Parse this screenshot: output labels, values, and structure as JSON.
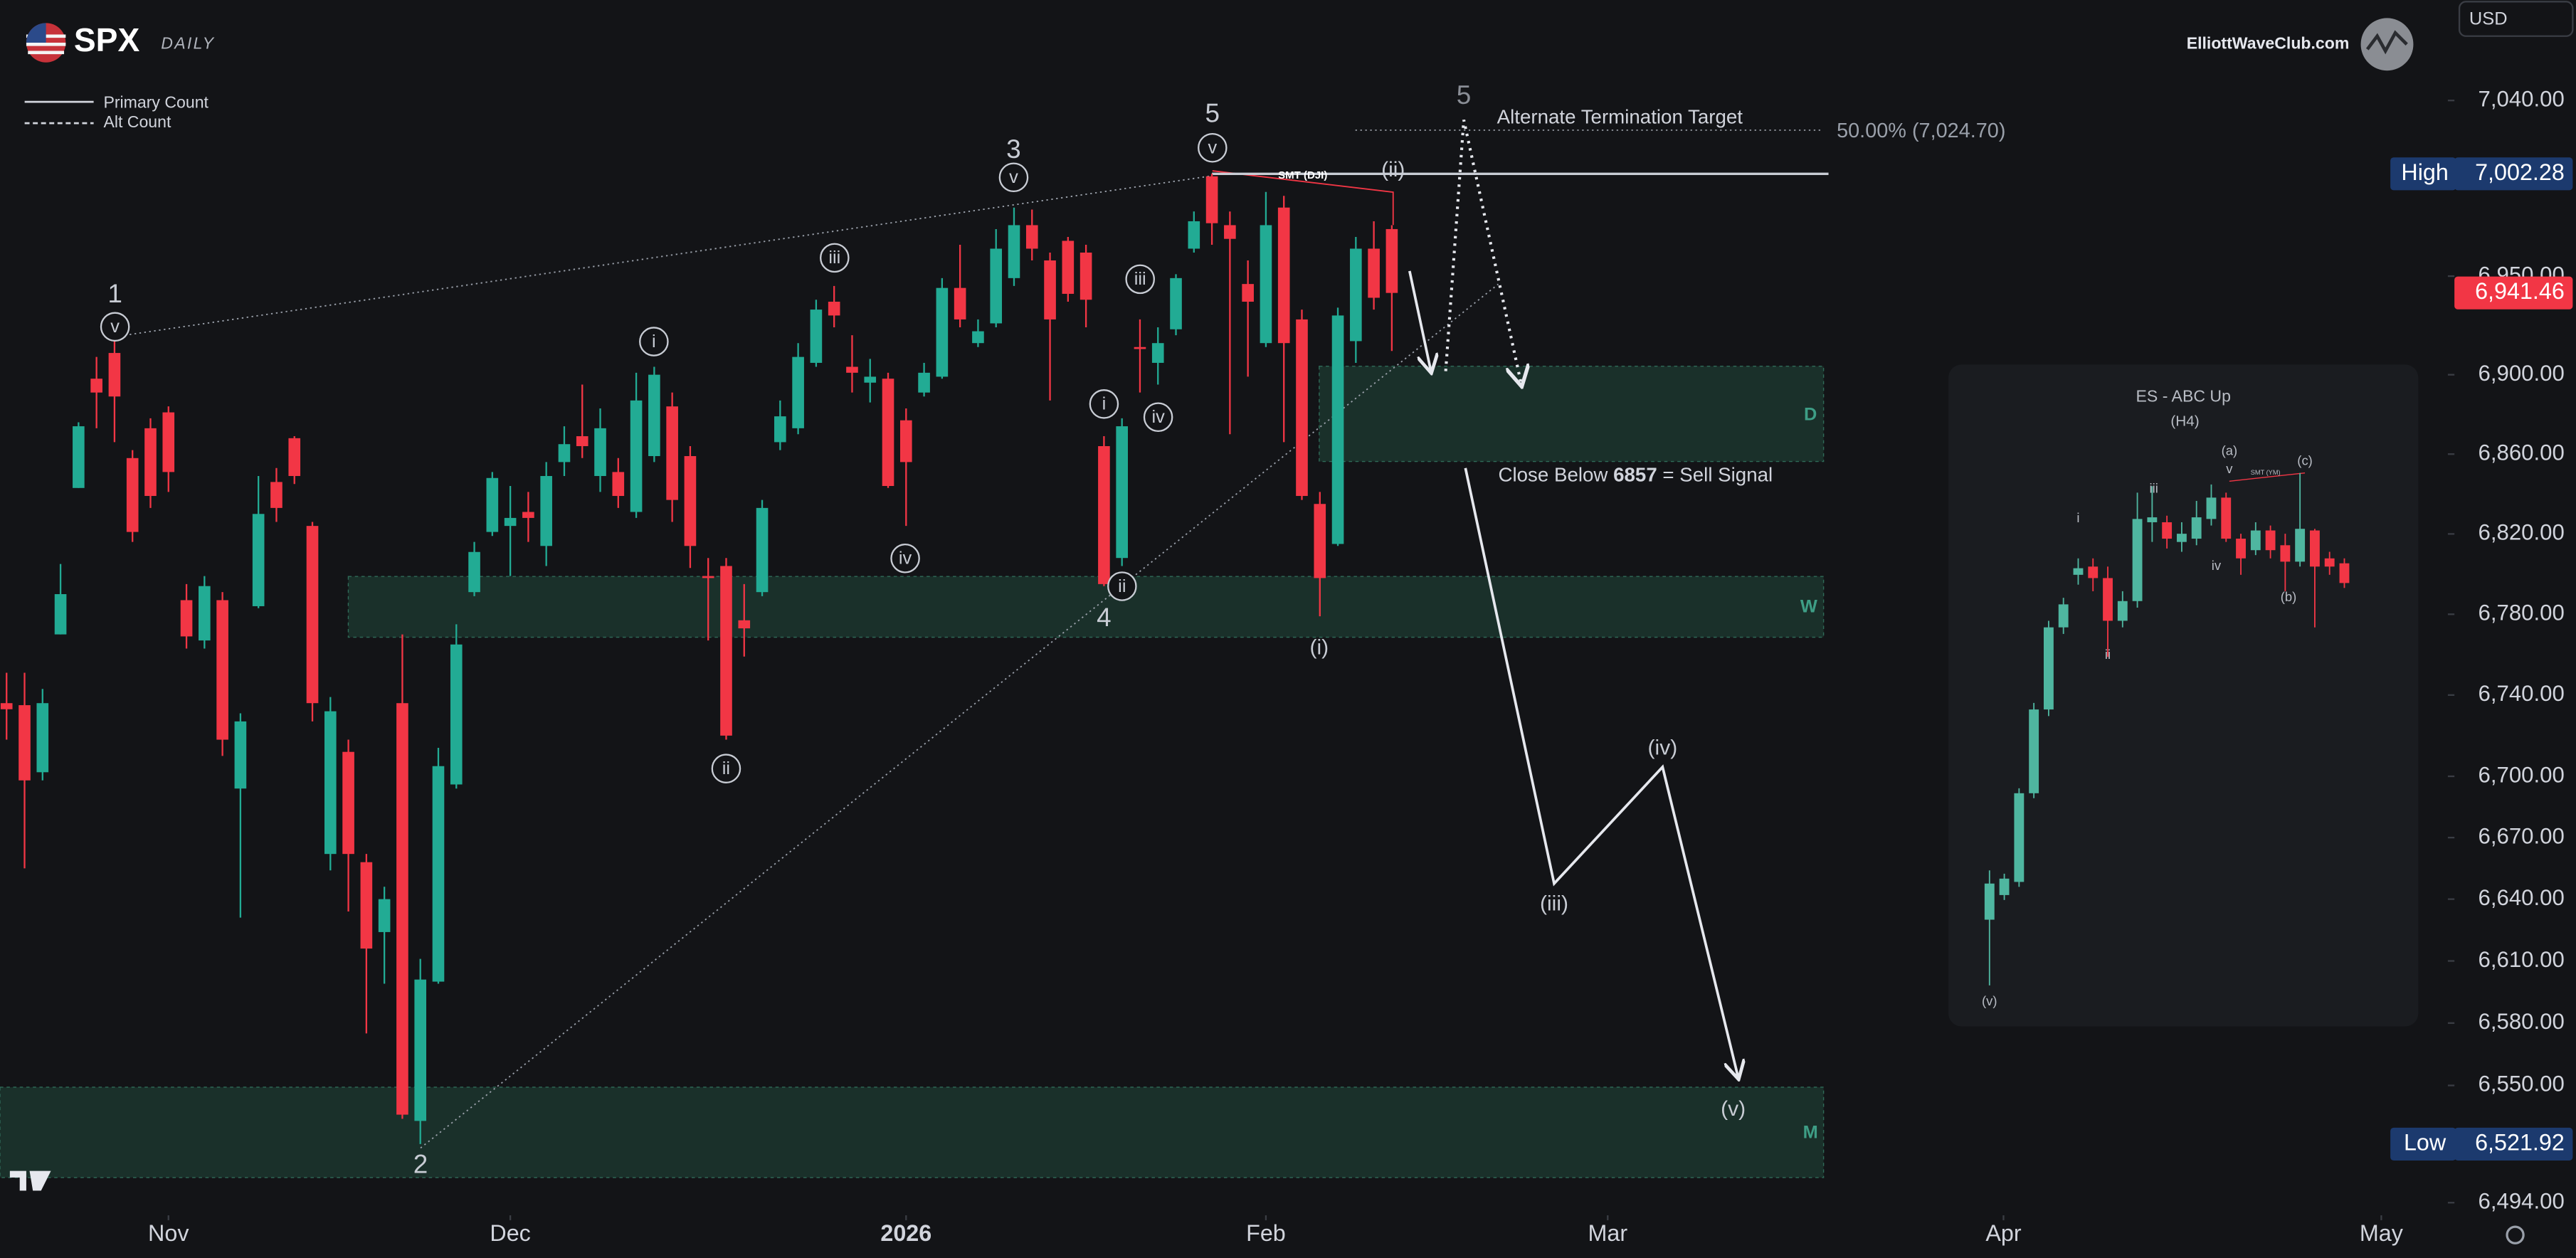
{
  "header": {
    "symbol": "SPX",
    "timeframe": "DAILY",
    "site": "ElliottWaveClub.com",
    "currency": "USD"
  },
  "legend": [
    "Primary Count",
    "Alt Count"
  ],
  "chart_data": {
    "type": "candlestick",
    "up_color": "#22ab94",
    "down_color": "#f23645",
    "log_scale": true,
    "grid": false,
    "open": [
      6736,
      6735,
      6702,
      6770,
      6843,
      6898,
      6911,
      6858,
      6873,
      6881,
      6787,
      6767,
      6787,
      6694,
      6784,
      6846,
      6868,
      6824,
      6662,
      6712,
      6658,
      6624,
      6736,
      6533,
      6600,
      6696,
      6791,
      6821,
      6824,
      6831,
      6814,
      6856,
      6869,
      6849,
      6851,
      6831,
      6859,
      6884,
      6859,
      6799,
      6804,
      6777,
      6791,
      6866,
      6873,
      6906,
      6937,
      6904,
      6896,
      6898,
      6877,
      6891,
      6899,
      6944,
      6916,
      6926,
      6949,
      6976,
      6958,
      6968,
      6962,
      6864,
      6808,
      6914,
      6906,
      6923,
      6964,
      7001,
      6976,
      6946,
      6916,
      6985,
      6928,
      6835,
      6815,
      6917,
      6964,
      6974
    ],
    "high": [
      6751,
      6751,
      6743,
      6805,
      6876,
      6909,
      6920,
      6862,
      6878,
      6884,
      6795,
      6799,
      6791,
      6731,
      6849,
      6853,
      6869,
      6826,
      6739,
      6718,
      6662,
      6646,
      6770,
      6611,
      6714,
      6775,
      6816,
      6851,
      6844,
      6841,
      6856,
      6874,
      6895,
      6883,
      6858,
      6901,
      6904,
      6891,
      6864,
      6808,
      6808,
      6795,
      6837,
      6887,
      6916,
      6938,
      6945,
      6920,
      6908,
      6901,
      6883,
      6906,
      6949,
      6966,
      6928,
      6974,
      6985,
      6984,
      6962,
      6970,
      6966,
      6869,
      6878,
      6928,
      6924,
      6951,
      6983,
      7002.28,
      6983,
      6958,
      6993,
      6991,
      6933,
      6841,
      6934,
      6970,
      6978,
      6976
    ],
    "low": [
      6718,
      6655,
      6698,
      6770,
      6843,
      6873,
      6866,
      6816,
      6833,
      6841,
      6763,
      6763,
      6710,
      6631,
      6783,
      6826,
      6845,
      6727,
      6654,
      6634,
      6575,
      6599,
      6534,
      6521.92,
      6599,
      6694,
      6789,
      6819,
      6799,
      6816,
      6804,
      6849,
      6858,
      6841,
      6833,
      6828,
      6856,
      6826,
      6803,
      6767,
      6718,
      6759,
      6789,
      6862,
      6870,
      6904,
      6924,
      6891,
      6886,
      6843,
      6824,
      6889,
      6898,
      6924,
      6914,
      6924,
      6945,
      6958,
      6887,
      6937,
      6924,
      6794,
      6804,
      6891,
      6895,
      6920,
      6962,
      6966,
      6870,
      6899,
      6914,
      6866,
      6837,
      6779,
      6814,
      6906,
      6933,
      6912
    ],
    "close": [
      6733,
      6698,
      6736,
      6790,
      6874,
      6891,
      6889,
      6821,
      6839,
      6851,
      6769,
      6794,
      6718,
      6727,
      6830,
      6833,
      6849,
      6736,
      6732,
      6662,
      6616,
      6640,
      6536,
      6601,
      6705,
      6765,
      6811,
      6848,
      6828,
      6828,
      6849,
      6865,
      6864,
      6873,
      6839,
      6887,
      6900,
      6837,
      6814,
      6798,
      6720,
      6773,
      6833,
      6879,
      6909,
      6933,
      6930,
      6901,
      6899,
      6844,
      6856,
      6901,
      6944,
      6928,
      6922,
      6964,
      6976,
      6964,
      6928,
      6941,
      6938,
      6795,
      6874,
      6913,
      6916,
      6949,
      6978,
      6977,
      6969,
      6937,
      6976,
      6916,
      6839,
      6798,
      6930,
      6964,
      6939,
      6941.46
    ],
    "xlim": [
      -0.365,
      135.7
    ],
    "xticks": [
      {
        "value": 9,
        "label": "Nov"
      },
      {
        "value": 28,
        "label": "Dec"
      },
      {
        "value": 50,
        "label": "2026"
      },
      {
        "value": 70,
        "label": "Feb"
      },
      {
        "value": 89,
        "label": "Mar"
      },
      {
        "value": 111,
        "label": "Apr"
      },
      {
        "value": 132,
        "label": "May"
      }
    ],
    "ylim": [
      6488,
      7092
    ],
    "yticks": [
      {
        "value": 7040,
        "label": "7,040.00"
      },
      {
        "value": 6950,
        "label": "6,950.00"
      },
      {
        "value": 6900,
        "label": "6,900.00"
      },
      {
        "value": 6860,
        "label": "6,860.00"
      },
      {
        "value": 6820,
        "label": "6,820.00"
      },
      {
        "value": 6780,
        "label": "6,780.00"
      },
      {
        "value": 6740,
        "label": "6,740.00"
      },
      {
        "value": 6700,
        "label": "6,700.00"
      },
      {
        "value": 6670,
        "label": "6,670.00"
      },
      {
        "value": 6640,
        "label": "6,640.00"
      },
      {
        "value": 6610,
        "label": "6,610.00"
      },
      {
        "value": 6580,
        "label": "6,580.00"
      },
      {
        "value": 6550,
        "label": "6,550.00"
      },
      {
        "value": 6494,
        "label": "6,494.00"
      }
    ],
    "price_labels": [
      {
        "name": "High",
        "value": 7002.28,
        "label": "7,002.28"
      },
      {
        "value": 6941.46,
        "label": "6,941.46"
      },
      {
        "name": "Low",
        "value": 6521.92,
        "label": "6,521.92"
      }
    ],
    "fib_level": {
      "value": 7024.7,
      "label": "50.00% (7,024.70)"
    },
    "alt_target": "Alternate Termination Target",
    "sell_signal": {
      "before": "Close Below",
      "level": 6857,
      "after": "= Sell Signal"
    },
    "zones": [
      "D",
      "W",
      "M"
    ],
    "annotations": [
      "1",
      "v",
      "2",
      "3",
      "v",
      "4",
      "5",
      "v",
      "5",
      "i",
      "ii",
      "iii",
      "iv",
      "i",
      "ii",
      "iii",
      "iv",
      "(ii)",
      "(i)",
      "(iii)",
      "(iv)",
      "(v)",
      "SMT (DJI)"
    ]
  },
  "inset": {
    "title": "ES - ABC Up",
    "subtitle": "(H4)",
    "labels": [
      "(a)",
      "v",
      "SMT (YM)",
      "(c)",
      "i",
      "iii",
      "ii",
      "iv",
      "(b)",
      "(v)"
    ]
  }
}
